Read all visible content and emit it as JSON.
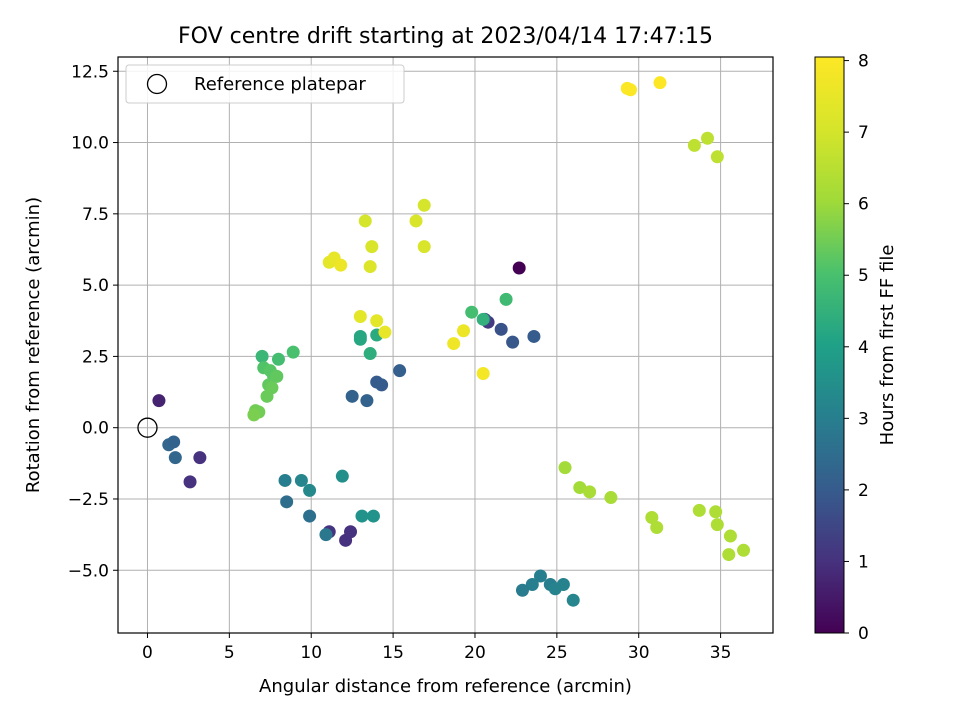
{
  "chart_data": {
    "type": "scatter",
    "title": "FOV centre drift starting at 2023/04/14 17:47:15",
    "xlabel": "Angular distance from reference (arcmin)",
    "ylabel": "Rotation from reference (arcmin)",
    "xlim": [
      -1.8,
      38.2
    ],
    "ylim": [
      -7.2,
      13.0
    ],
    "x_ticks": [
      0,
      5,
      10,
      15,
      20,
      25,
      30,
      35
    ],
    "y_ticks": [
      -5.0,
      -2.5,
      0.0,
      2.5,
      5.0,
      7.5,
      10.0,
      12.5
    ],
    "y_tick_labels": [
      "−5.0",
      "−2.5",
      "0.0",
      "2.5",
      "5.0",
      "7.5",
      "10.0",
      "12.5"
    ],
    "grid": true,
    "legend": {
      "placement": "upper-left",
      "entries": [
        "Reference platepar"
      ]
    },
    "colormap": "viridis",
    "colorbar": {
      "label": "Hours from first FF file",
      "range": [
        0,
        8.05
      ],
      "ticks": [
        0,
        1,
        2,
        3,
        4,
        5,
        6,
        7,
        8
      ]
    },
    "reference_point": {
      "x": 0,
      "y": 0,
      "label": "Reference platepar"
    },
    "points": [
      {
        "x": 22.7,
        "y": 5.6,
        "c": 0.0
      },
      {
        "x": 0.7,
        "y": 0.95,
        "c": 0.7
      },
      {
        "x": 2.6,
        "y": -1.9,
        "c": 1.0
      },
      {
        "x": 3.2,
        "y": -1.05,
        "c": 1.0
      },
      {
        "x": 12.1,
        "y": -3.95,
        "c": 1.0
      },
      {
        "x": 12.4,
        "y": -3.65,
        "c": 1.0
      },
      {
        "x": 11.1,
        "y": -3.65,
        "c": 1.05
      },
      {
        "x": 20.8,
        "y": 3.7,
        "c": 1.2
      },
      {
        "x": 20.6,
        "y": 3.8,
        "c": 1.55
      },
      {
        "x": 21.6,
        "y": 3.45,
        "c": 1.8
      },
      {
        "x": 22.3,
        "y": 3.0,
        "c": 1.9
      },
      {
        "x": 23.6,
        "y": 3.2,
        "c": 2.0
      },
      {
        "x": 14.0,
        "y": 1.6,
        "c": 2.0
      },
      {
        "x": 14.3,
        "y": 1.5,
        "c": 2.0
      },
      {
        "x": 15.4,
        "y": 2.0,
        "c": 2.1
      },
      {
        "x": 12.5,
        "y": 1.1,
        "c": 2.2
      },
      {
        "x": 13.4,
        "y": 0.95,
        "c": 2.2
      },
      {
        "x": 1.3,
        "y": -0.6,
        "c": 2.3
      },
      {
        "x": 1.7,
        "y": -1.05,
        "c": 2.3
      },
      {
        "x": 1.6,
        "y": -0.5,
        "c": 2.2
      },
      {
        "x": 8.5,
        "y": -2.6,
        "c": 2.5
      },
      {
        "x": 9.9,
        "y": -3.1,
        "c": 2.6
      },
      {
        "x": 10.9,
        "y": -3.75,
        "c": 2.8
      },
      {
        "x": 8.4,
        "y": -1.85,
        "c": 3.0
      },
      {
        "x": 9.4,
        "y": -1.85,
        "c": 3.2
      },
      {
        "x": 9.9,
        "y": -2.2,
        "c": 3.3
      },
      {
        "x": 11.9,
        "y": -1.7,
        "c": 3.5
      },
      {
        "x": 13.1,
        "y": -3.1,
        "c": 3.6
      },
      {
        "x": 13.8,
        "y": -3.1,
        "c": 3.6
      },
      {
        "x": 24.0,
        "y": -5.2,
        "c": 3.0
      },
      {
        "x": 24.6,
        "y": -5.5,
        "c": 3.0
      },
      {
        "x": 23.5,
        "y": -5.5,
        "c": 3.0
      },
      {
        "x": 22.9,
        "y": -5.7,
        "c": 2.9
      },
      {
        "x": 24.9,
        "y": -5.65,
        "c": 3.1
      },
      {
        "x": 25.4,
        "y": -5.5,
        "c": 3.1
      },
      {
        "x": 26.0,
        "y": -6.05,
        "c": 3.2
      },
      {
        "x": 13.0,
        "y": 3.1,
        "c": 4.2
      },
      {
        "x": 13.0,
        "y": 3.2,
        "c": 4.2
      },
      {
        "x": 14.0,
        "y": 3.25,
        "c": 4.3
      },
      {
        "x": 13.6,
        "y": 2.6,
        "c": 4.4
      },
      {
        "x": 20.5,
        "y": 3.8,
        "c": 4.5
      },
      {
        "x": 19.8,
        "y": 4.05,
        "c": 4.9
      },
      {
        "x": 21.9,
        "y": 4.5,
        "c": 4.8
      },
      {
        "x": 7.0,
        "y": 2.5,
        "c": 4.7
      },
      {
        "x": 8.9,
        "y": 2.65,
        "c": 5.0
      },
      {
        "x": 8.0,
        "y": 2.4,
        "c": 4.9
      },
      {
        "x": 7.1,
        "y": 2.1,
        "c": 5.1
      },
      {
        "x": 7.5,
        "y": 2.0,
        "c": 5.2
      },
      {
        "x": 7.7,
        "y": 1.8,
        "c": 5.2
      },
      {
        "x": 7.9,
        "y": 1.8,
        "c": 5.3
      },
      {
        "x": 7.4,
        "y": 1.5,
        "c": 5.3
      },
      {
        "x": 7.6,
        "y": 1.4,
        "c": 5.4
      },
      {
        "x": 7.3,
        "y": 1.1,
        "c": 5.4
      },
      {
        "x": 6.6,
        "y": 0.6,
        "c": 5.5
      },
      {
        "x": 6.8,
        "y": 0.55,
        "c": 5.5
      },
      {
        "x": 6.5,
        "y": 0.45,
        "c": 5.6
      },
      {
        "x": 25.5,
        "y": -1.4,
        "c": 6.1
      },
      {
        "x": 26.4,
        "y": -2.1,
        "c": 6.1
      },
      {
        "x": 27.0,
        "y": -2.25,
        "c": 6.2
      },
      {
        "x": 28.3,
        "y": -2.45,
        "c": 6.2
      },
      {
        "x": 30.8,
        "y": -3.15,
        "c": 6.3
      },
      {
        "x": 31.1,
        "y": -3.5,
        "c": 6.3
      },
      {
        "x": 33.7,
        "y": -2.9,
        "c": 6.3
      },
      {
        "x": 34.7,
        "y": -2.95,
        "c": 6.3
      },
      {
        "x": 34.8,
        "y": -3.4,
        "c": 6.3
      },
      {
        "x": 35.6,
        "y": -3.8,
        "c": 6.3
      },
      {
        "x": 35.5,
        "y": -4.45,
        "c": 6.3
      },
      {
        "x": 36.4,
        "y": -4.3,
        "c": 6.3
      },
      {
        "x": 33.4,
        "y": 9.9,
        "c": 6.6
      },
      {
        "x": 34.2,
        "y": 10.15,
        "c": 6.6
      },
      {
        "x": 34.8,
        "y": 9.5,
        "c": 6.6
      },
      {
        "x": 13.3,
        "y": 7.25,
        "c": 7.0
      },
      {
        "x": 16.9,
        "y": 7.8,
        "c": 7.0
      },
      {
        "x": 16.4,
        "y": 7.25,
        "c": 7.1
      },
      {
        "x": 13.7,
        "y": 6.35,
        "c": 7.1
      },
      {
        "x": 16.9,
        "y": 6.35,
        "c": 7.1
      },
      {
        "x": 13.6,
        "y": 5.65,
        "c": 7.2
      },
      {
        "x": 11.1,
        "y": 5.8,
        "c": 7.4
      },
      {
        "x": 11.4,
        "y": 5.95,
        "c": 7.5
      },
      {
        "x": 11.8,
        "y": 5.7,
        "c": 7.6
      },
      {
        "x": 13.0,
        "y": 3.9,
        "c": 7.4
      },
      {
        "x": 14.0,
        "y": 3.75,
        "c": 7.4
      },
      {
        "x": 14.5,
        "y": 3.35,
        "c": 7.5
      },
      {
        "x": 19.3,
        "y": 3.4,
        "c": 7.6
      },
      {
        "x": 18.7,
        "y": 2.95,
        "c": 7.7
      },
      {
        "x": 20.5,
        "y": 1.9,
        "c": 7.8
      },
      {
        "x": 29.3,
        "y": 11.9,
        "c": 8.0
      },
      {
        "x": 29.5,
        "y": 11.85,
        "c": 8.0
      },
      {
        "x": 31.3,
        "y": 12.1,
        "c": 8.05
      }
    ]
  }
}
